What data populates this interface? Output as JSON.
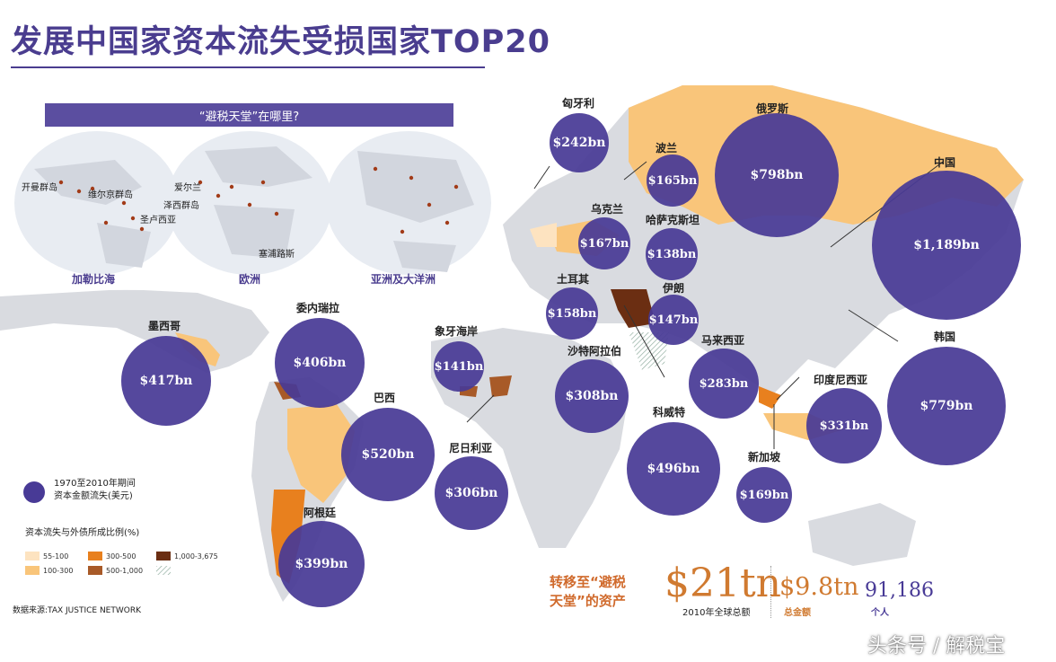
{
  "title": "发展中国家资本流失受损国家TOP20",
  "colors": {
    "bubble": "#483a96",
    "land_gray": "#d9dbe0",
    "land_orange": "#f9c57a",
    "dark_orange": "#e8801e",
    "brown": "#7b3a18",
    "accent_orange": "#d07a30"
  },
  "inset": {
    "heading": "“避税天堂”在哪里?",
    "regions": [
      "加勒比海",
      "欧洲",
      "亚洲及大洋洲"
    ],
    "places": [
      "开曼群岛",
      "维尔京群岛",
      "圣卢西亚",
      "爱尔兰",
      "泽西群岛",
      "塞浦路斯"
    ]
  },
  "countries": [
    {
      "name": "匈牙利",
      "value": "$242bn"
    },
    {
      "name": "波兰",
      "value": "$165bn"
    },
    {
      "name": "俄罗斯",
      "value": "$798bn"
    },
    {
      "name": "中国",
      "value": "$1,189bn"
    },
    {
      "name": "乌克兰",
      "value": "$167bn"
    },
    {
      "name": "哈萨克斯坦",
      "value": "$138bn"
    },
    {
      "name": "土耳其",
      "value": "$158bn"
    },
    {
      "name": "伊朗",
      "value": "$147bn"
    },
    {
      "name": "委内瑞拉",
      "value": "$406bn"
    },
    {
      "name": "墨西哥",
      "value": "$417bn"
    },
    {
      "name": "象牙海岸",
      "value": "$141bn"
    },
    {
      "name": "沙特阿拉伯",
      "value": "$308bn"
    },
    {
      "name": "马来西亚",
      "value": "$283bn"
    },
    {
      "name": "韩国",
      "value": "$779bn"
    },
    {
      "name": "印度尼西亚",
      "value": "$331bn"
    },
    {
      "name": "巴西",
      "value": "$520bn"
    },
    {
      "name": "科威特",
      "value": "$496bn"
    },
    {
      "name": "尼日利亚",
      "value": "$306bn"
    },
    {
      "name": "新加坡",
      "value": "$169bn"
    },
    {
      "name": "阿根廷",
      "value": "$399bn"
    }
  ],
  "legend": {
    "bubble_caption_1": "1970至2010年期间",
    "bubble_caption_2": "资本金额流失(美元)",
    "ratio_title": "资本流失与外债所成比例(%)",
    "ranges": [
      {
        "label": "55-100",
        "color": "#fde3c0"
      },
      {
        "label": "100-300",
        "color": "#f9c57a"
      },
      {
        "label": "300-500",
        "color": "#e8801e"
      },
      {
        "label": "500-1,000",
        "color": "#a85a28"
      },
      {
        "label": "1,000-3,675",
        "color": "#6b2e12"
      },
      {
        "label": "",
        "color": "hatch"
      }
    ]
  },
  "source": "数据来源:TAX JUSTICE NETWORK",
  "totals": {
    "transfer_line1": "转移至“避税",
    "transfer_line2": "天堂”的资产",
    "global_total": "$21tn",
    "global_caption": "2010年全球总额",
    "partial_total": "$9.8tn",
    "partial_caption": "总金额",
    "individuals": "91,186",
    "individuals_caption": "个人"
  },
  "watermark": "头条号 / 解税宝"
}
